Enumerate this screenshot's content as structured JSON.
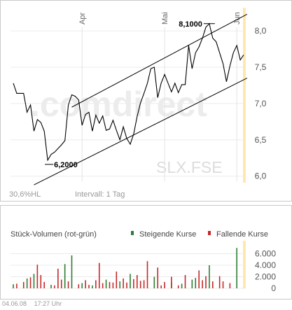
{
  "price_chart": {
    "watermark": ".comdirect",
    "symbol_label": "SLX.FSE",
    "volatility_label": "30,6%HL",
    "interval_label": "Intervall: 1 Tag",
    "month_labels": [
      "Apr",
      "Mai",
      "Jun"
    ],
    "annotations": {
      "high": "8,1000",
      "low": "6,2000"
    },
    "colors": {
      "line": "#000000",
      "grid": "#e6e6e6",
      "highlight": "#fde9b0",
      "axis_text": "#555555"
    }
  },
  "volume_chart": {
    "title": "Stück-Volumen (rot-grün)",
    "legend": [
      {
        "label": "Steigende Kurse",
        "color": "#2e7d32"
      },
      {
        "label": "Fallende Kurse",
        "color": "#c62828"
      }
    ]
  },
  "footer": {
    "date": "04.06.08",
    "time": "17:27 Uhr"
  },
  "chart_data": [
    {
      "type": "line",
      "y_ticks": [
        6.0,
        6.5,
        7.0,
        7.5,
        8.0
      ],
      "ylim": [
        5.93,
        8.3
      ],
      "x_tick_labels": [
        "Apr",
        "Mai",
        "Jun"
      ],
      "x_tick_index": [
        20,
        44,
        65
      ],
      "high": 8.1,
      "low": 6.2,
      "series": [
        {
          "values": [
            7.28,
            7.14,
            7.14,
            7.14,
            6.88,
            6.98,
            6.62,
            6.78,
            6.74,
            6.62,
            6.22,
            6.3,
            6.33,
            6.38,
            6.43,
            6.49,
            6.98,
            7.12,
            7.1,
            7.05,
            6.7,
            6.85,
            6.88,
            6.62,
            6.84,
            6.73,
            6.83,
            6.63,
            6.65,
            6.77,
            6.63,
            6.5,
            6.68,
            6.52,
            6.44,
            6.58,
            6.82,
            7.01,
            7.14,
            7.28,
            7.48,
            7.5,
            7.08,
            7.28,
            7.4,
            7.28,
            7.16,
            7.28,
            7.15,
            7.26,
            7.26,
            7.8,
            7.48,
            7.7,
            7.78,
            7.9,
            8.05,
            8.1,
            7.9,
            7.85,
            7.7,
            7.55,
            7.3,
            7.52,
            7.7,
            7.8,
            7.6,
            7.67
          ]
        }
      ],
      "trendlines": [
        {
          "from": [
            17,
            6.95
          ],
          "to": [
            68,
            8.23
          ]
        },
        {
          "from": [
            6,
            5.88
          ],
          "to": [
            68,
            7.35
          ]
        }
      ]
    },
    {
      "type": "bar",
      "ylim": [
        0,
        8000
      ],
      "y_ticks": [
        0,
        2000,
        4000,
        6000
      ],
      "y_tick_labels": [
        "0",
        "2.000",
        "4.000",
        "6.000"
      ],
      "series": [
        {
          "name": "Steigende Kurse",
          "values": [
            700,
            0,
            0,
            0,
            1700,
            0,
            2500,
            0,
            0,
            0,
            0,
            600,
            0,
            0,
            0,
            4200,
            0,
            5700,
            0,
            0,
            900,
            0,
            0,
            500,
            0,
            0,
            0,
            1500,
            0,
            0,
            0,
            1200,
            0,
            0,
            2500,
            0,
            0,
            0,
            0,
            0,
            0,
            2000,
            0,
            0,
            0,
            0,
            1100,
            0,
            0,
            800,
            0,
            0,
            1500,
            1800,
            0,
            0,
            0,
            4000,
            0,
            0,
            0,
            0,
            0,
            0,
            0,
            7000,
            0,
            0
          ]
        },
        {
          "name": "Fallende Kurse",
          "values": [
            0,
            800,
            0,
            1100,
            0,
            1900,
            0,
            4100,
            2300,
            1100,
            0,
            0,
            500,
            3400,
            1500,
            0,
            1200,
            0,
            0,
            700,
            0,
            1400,
            600,
            0,
            1400,
            4400,
            900,
            0,
            1100,
            1000,
            2900,
            0,
            1700,
            1000,
            0,
            1600,
            2300,
            1300,
            1400,
            4700,
            0,
            0,
            3600,
            500,
            1100,
            0,
            2000,
            0,
            500,
            0,
            2300,
            0,
            0,
            0,
            3100,
            1400,
            2100,
            0,
            1200,
            0,
            2100,
            1200,
            0,
            900,
            0,
            0,
            0,
            1800
          ]
        }
      ]
    }
  ]
}
